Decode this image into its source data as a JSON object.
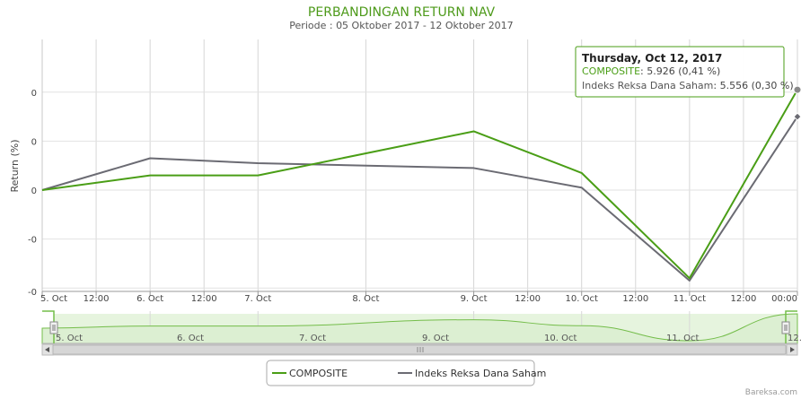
{
  "chart_data": {
    "type": "line",
    "title": "PERBANDINGAN RETURN NAV",
    "subtitle": "Periode : 05 Oktober 2017 - 12 Oktober 2017",
    "ylabel": "Return (%)",
    "ytick_labels": [
      "0",
      "0",
      "0",
      "-0",
      "-0"
    ],
    "xtick_labels": [
      "5. Oct",
      "12:00",
      "6. Oct",
      "12:00",
      "7. Oct",
      "8. Oct",
      "9. Oct",
      "12:00",
      "10. Oct",
      "12:00",
      "11. Oct",
      "12:00",
      "00:00"
    ],
    "x": [
      "2017-10-05",
      "2017-10-06",
      "2017-10-07",
      "2017-10-09",
      "2017-10-10",
      "2017-10-11",
      "2017-10-12"
    ],
    "ylim": [
      -0.45,
      0.45
    ],
    "grid": true,
    "legend_position": "bottom-center",
    "series": [
      {
        "name": "COMPOSITE",
        "color": "#4a9e16",
        "values": [
          0.0,
          0.06,
          0.06,
          0.24,
          0.07,
          -0.36,
          0.41
        ]
      },
      {
        "name": "Indeks Reksa Dana Saham",
        "color": "#6b6b73",
        "values": [
          0.0,
          0.13,
          0.11,
          0.09,
          0.01,
          -0.37,
          0.3
        ]
      }
    ]
  },
  "tooltip": {
    "header": "Thursday, Oct 12, 2017",
    "lines": [
      {
        "label": "COMPOSITE",
        "value": "5.926 (0,41 %)"
      },
      {
        "label": "Indeks Reksa Dana Saham",
        "value": "5.556 (0,30 %)"
      }
    ]
  },
  "navigator": {
    "labels": [
      "5. Oct",
      "6. Oct",
      "7. Oct",
      "9. Oct",
      "10. Oct",
      "11. Oct",
      "12."
    ]
  },
  "credit": "Bareksa.com"
}
